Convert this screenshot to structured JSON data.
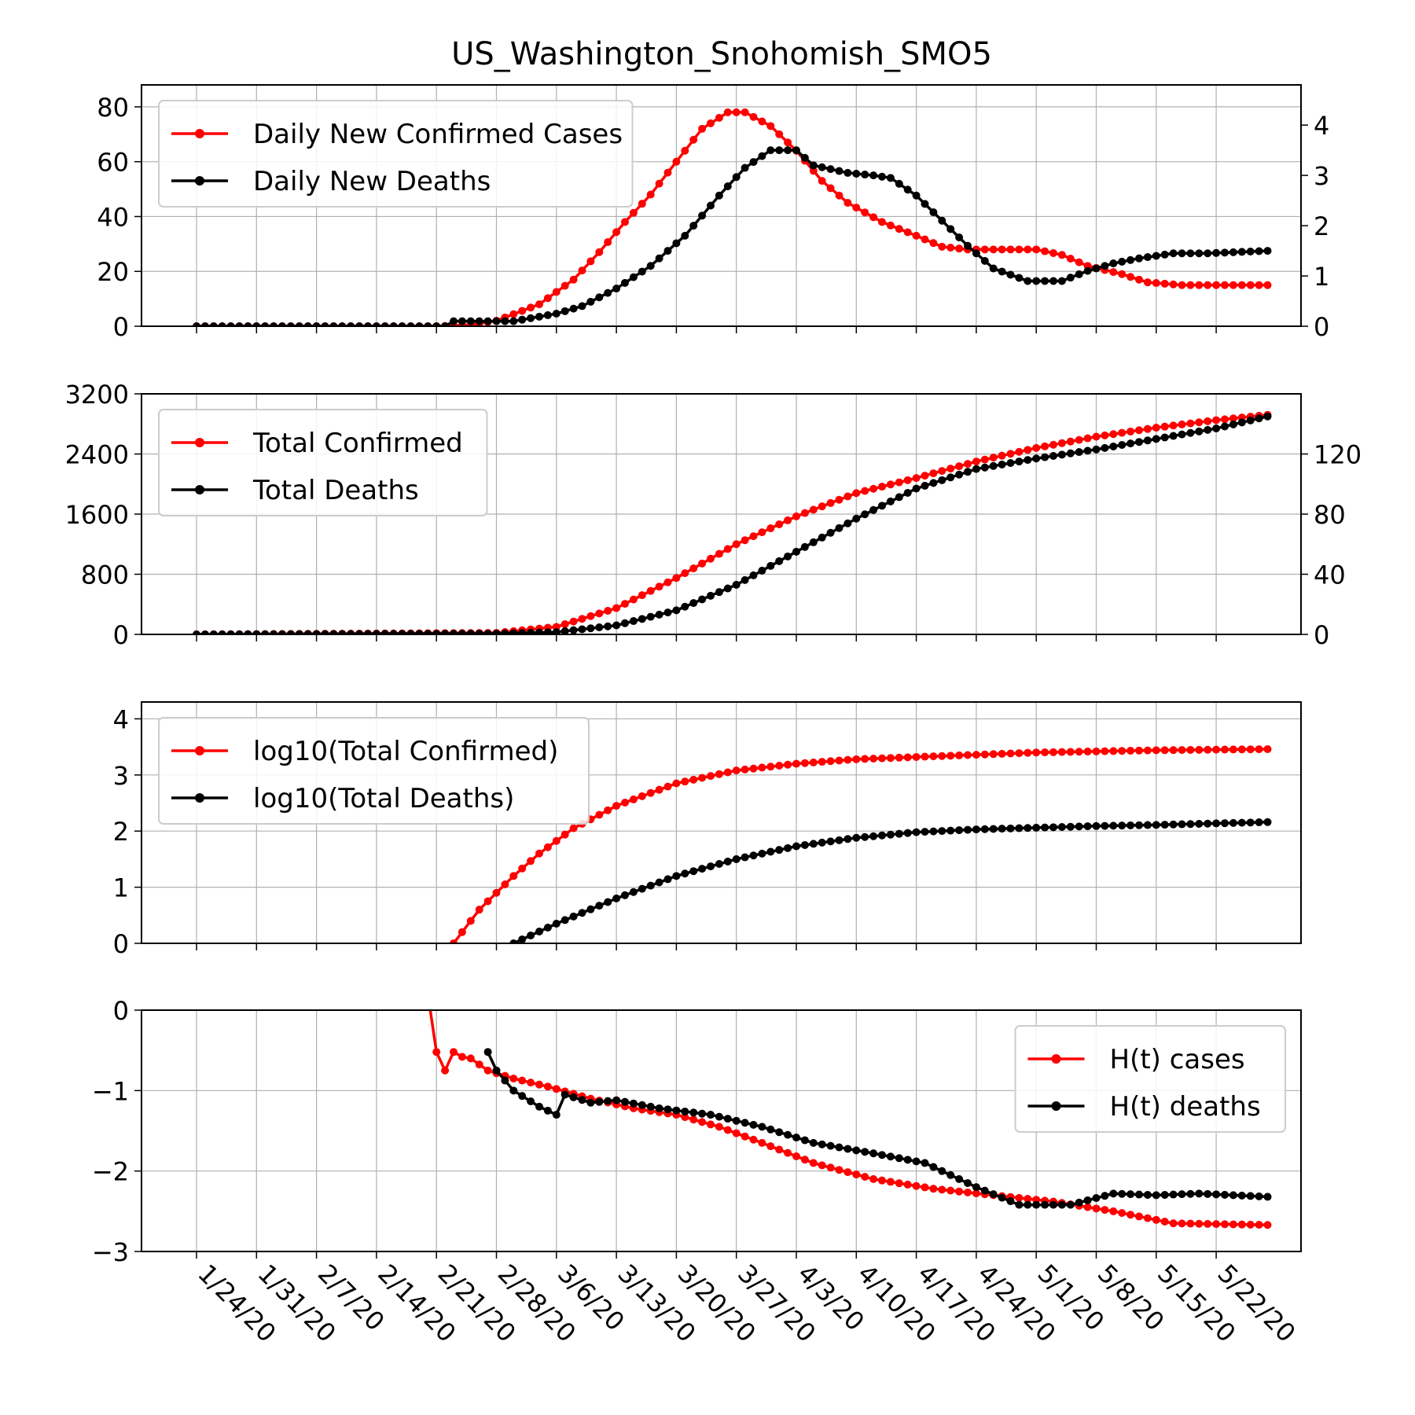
{
  "figure_title": "US_Washington_Snohomish_SMO5",
  "x_axis": {
    "ticks": [
      "1/24/20",
      "1/31/20",
      "2/7/20",
      "2/14/20",
      "2/21/20",
      "2/28/20",
      "3/6/20",
      "3/13/20",
      "3/20/20",
      "3/27/20",
      "4/3/20",
      "4/10/20",
      "4/17/20",
      "4/24/20",
      "5/1/20",
      "5/8/20",
      "5/15/20",
      "5/22/20"
    ],
    "first_date": "1/24/20",
    "last_date": "5/28/20"
  },
  "colors": {
    "cases": "#ff0000",
    "deaths": "#000000",
    "grid": "#b0b0b0"
  },
  "chart_data": [
    {
      "type": "line",
      "ylim_left": [
        0,
        88
      ],
      "yticks_left": [
        0,
        20,
        40,
        60,
        80
      ],
      "ylim_right": [
        0,
        4.8
      ],
      "yticks_right": [
        0,
        1,
        2,
        3,
        4
      ],
      "legend_position": "upper-left",
      "series": [
        {
          "name": "Daily New Confirmed Cases",
          "axis": "left",
          "color": "#ff0000",
          "points": [
            [
              "1/24/20",
              0
            ],
            [
              "2/21/20",
              0
            ],
            [
              "2/25/20",
              0.5
            ],
            [
              "2/28/20",
              2
            ],
            [
              "3/4/20",
              8
            ],
            [
              "3/8/20",
              17
            ],
            [
              "3/11/20",
              27
            ],
            [
              "3/14/20",
              38
            ],
            [
              "3/17/20",
              48
            ],
            [
              "3/20/20",
              60
            ],
            [
              "3/23/20",
              72
            ],
            [
              "3/26/20",
              78
            ],
            [
              "3/28/20",
              78
            ],
            [
              "3/31/20",
              73
            ],
            [
              "4/3/20",
              64
            ],
            [
              "4/6/20",
              53
            ],
            [
              "4/9/20",
              45
            ],
            [
              "4/13/20",
              38
            ],
            [
              "4/17/20",
              33
            ],
            [
              "4/20/20",
              29
            ],
            [
              "4/23/20",
              28
            ],
            [
              "4/28/20",
              28
            ],
            [
              "5/1/20",
              28
            ],
            [
              "5/4/20",
              26
            ],
            [
              "5/7/20",
              22
            ],
            [
              "5/11/20",
              19
            ],
            [
              "5/14/20",
              16
            ],
            [
              "5/18/20",
              15
            ],
            [
              "5/28/20",
              15
            ]
          ]
        },
        {
          "name": "Daily New Deaths",
          "axis": "left-of-right",
          "color": "#000000",
          "points": [
            [
              "1/24/20",
              0
            ],
            [
              "2/22/20",
              0
            ],
            [
              "2/23/20",
              0.1
            ],
            [
              "3/1/20",
              0.1
            ],
            [
              "3/6/20",
              0.25
            ],
            [
              "3/9/20",
              0.4
            ],
            [
              "3/13/20",
              0.75
            ],
            [
              "3/17/20",
              1.2
            ],
            [
              "3/21/20",
              1.8
            ],
            [
              "3/25/20",
              2.6
            ],
            [
              "3/28/20",
              3.15
            ],
            [
              "3/31/20",
              3.5
            ],
            [
              "4/3/20",
              3.5
            ],
            [
              "4/5/20",
              3.2
            ],
            [
              "4/9/20",
              3.05
            ],
            [
              "4/12/20",
              3.0
            ],
            [
              "4/14/20",
              2.95
            ],
            [
              "4/17/20",
              2.6
            ],
            [
              "4/20/20",
              2.1
            ],
            [
              "4/23/20",
              1.6
            ],
            [
              "4/26/20",
              1.15
            ],
            [
              "4/30/20",
              0.9
            ],
            [
              "5/4/20",
              0.9
            ],
            [
              "5/7/20",
              1.1
            ],
            [
              "5/10/20",
              1.25
            ],
            [
              "5/13/20",
              1.35
            ],
            [
              "5/17/20",
              1.45
            ],
            [
              "5/21/20",
              1.45
            ],
            [
              "5/28/20",
              1.5
            ]
          ]
        }
      ]
    },
    {
      "type": "line",
      "ylim_left": [
        0,
        3200
      ],
      "yticks_left": [
        0,
        800,
        1600,
        2400,
        3200
      ],
      "ylim_right": [
        0,
        160
      ],
      "yticks_right": [
        0,
        40,
        80,
        120
      ],
      "legend_position": "upper-left",
      "series": [
        {
          "name": "Total Confirmed",
          "axis": "left",
          "color": "#ff0000",
          "points": [
            [
              "1/24/20",
              0
            ],
            [
              "2/28/20",
              20
            ],
            [
              "3/6/20",
              100
            ],
            [
              "3/13/20",
              350
            ],
            [
              "3/20/20",
              750
            ],
            [
              "3/27/20",
              1200
            ],
            [
              "4/3/20",
              1570
            ],
            [
              "4/10/20",
              1880
            ],
            [
              "4/17/20",
              2080
            ],
            [
              "4/24/20",
              2300
            ],
            [
              "5/1/20",
              2480
            ],
            [
              "5/8/20",
              2630
            ],
            [
              "5/15/20",
              2750
            ],
            [
              "5/22/20",
              2850
            ],
            [
              "5/28/20",
              2920
            ]
          ]
        },
        {
          "name": "Total Deaths",
          "axis": "right",
          "color": "#000000",
          "points": [
            [
              "1/24/20",
              0
            ],
            [
              "2/28/20",
              0.5
            ],
            [
              "3/6/20",
              1.5
            ],
            [
              "3/13/20",
              6
            ],
            [
              "3/20/20",
              16
            ],
            [
              "3/27/20",
              33
            ],
            [
              "4/3/20",
              55
            ],
            [
              "4/10/20",
              77
            ],
            [
              "4/17/20",
              97
            ],
            [
              "4/24/20",
              110
            ],
            [
              "5/1/20",
              117
            ],
            [
              "5/8/20",
              123
            ],
            [
              "5/15/20",
              130
            ],
            [
              "5/22/20",
              137
            ],
            [
              "5/28/20",
              145
            ]
          ]
        }
      ]
    },
    {
      "type": "line",
      "ylim_left": [
        0,
        4.3
      ],
      "yticks_left": [
        0,
        1,
        2,
        3,
        4
      ],
      "legend_position": "upper-left",
      "series": [
        {
          "name": "log10(Total Confirmed)",
          "axis": "left",
          "color": "#ff0000",
          "points": [
            [
              "2/23/20",
              0
            ],
            [
              "2/26/20",
              0.6
            ],
            [
              "3/1/20",
              1.2
            ],
            [
              "3/4/20",
              1.6
            ],
            [
              "3/8/20",
              2.05
            ],
            [
              "3/13/20",
              2.45
            ],
            [
              "3/20/20",
              2.85
            ],
            [
              "3/27/20",
              3.08
            ],
            [
              "4/3/20",
              3.2
            ],
            [
              "4/10/20",
              3.28
            ],
            [
              "4/17/20",
              3.32
            ],
            [
              "4/24/20",
              3.36
            ],
            [
              "5/1/20",
              3.4
            ],
            [
              "5/8/20",
              3.42
            ],
            [
              "5/15/20",
              3.44
            ],
            [
              "5/28/20",
              3.46
            ]
          ]
        },
        {
          "name": "log10(Total Deaths)",
          "axis": "left",
          "color": "#000000",
          "points": [
            [
              "3/1/20",
              0
            ],
            [
              "3/6/20",
              0.35
            ],
            [
              "3/13/20",
              0.8
            ],
            [
              "3/20/20",
              1.2
            ],
            [
              "3/27/20",
              1.5
            ],
            [
              "4/3/20",
              1.73
            ],
            [
              "4/10/20",
              1.88
            ],
            [
              "4/17/20",
              1.98
            ],
            [
              "4/24/20",
              2.03
            ],
            [
              "5/1/20",
              2.06
            ],
            [
              "5/8/20",
              2.09
            ],
            [
              "5/15/20",
              2.11
            ],
            [
              "5/28/20",
              2.16
            ]
          ]
        }
      ]
    },
    {
      "type": "line",
      "ylim_left": [
        -3,
        0
      ],
      "yticks_left": [
        0,
        -1,
        -2,
        -3
      ],
      "legend_position": "upper-right",
      "series": [
        {
          "name": "H(t) cases",
          "axis": "left",
          "color": "#ff0000",
          "points": [
            [
              "2/20/20",
              0.2
            ],
            [
              "2/21/20",
              -0.52
            ],
            [
              "2/22/20",
              -0.75
            ],
            [
              "2/23/20",
              -0.52
            ],
            [
              "2/24/20",
              -0.58
            ],
            [
              "2/25/20",
              -0.6
            ],
            [
              "2/27/20",
              -0.75
            ],
            [
              "3/1/20",
              -0.85
            ],
            [
              "3/5/20",
              -0.95
            ],
            [
              "3/10/20",
              -1.1
            ],
            [
              "3/15/20",
              -1.22
            ],
            [
              "3/20/20",
              -1.3
            ],
            [
              "3/25/20",
              -1.45
            ],
            [
              "3/30/20",
              -1.65
            ],
            [
              "4/5/20",
              -1.9
            ],
            [
              "4/12/20",
              -2.1
            ],
            [
              "4/19/20",
              -2.22
            ],
            [
              "4/26/20",
              -2.3
            ],
            [
              "5/3/20",
              -2.38
            ],
            [
              "5/10/20",
              -2.5
            ],
            [
              "5/17/20",
              -2.65
            ],
            [
              "5/28/20",
              -2.67
            ]
          ]
        },
        {
          "name": "H(t) deaths",
          "axis": "left",
          "color": "#000000",
          "points": [
            [
              "2/27/20",
              -0.52
            ],
            [
              "2/28/20",
              -0.75
            ],
            [
              "3/1/20",
              -1.0
            ],
            [
              "3/4/20",
              -1.2
            ],
            [
              "3/6/20",
              -1.3
            ],
            [
              "3/7/20",
              -1.05
            ],
            [
              "3/10/20",
              -1.15
            ],
            [
              "3/13/20",
              -1.12
            ],
            [
              "3/18/20",
              -1.22
            ],
            [
              "3/24/20",
              -1.3
            ],
            [
              "3/30/20",
              -1.45
            ],
            [
              "4/5/20",
              -1.65
            ],
            [
              "4/12/20",
              -1.78
            ],
            [
              "4/18/20",
              -1.9
            ],
            [
              "4/24/20",
              -2.2
            ],
            [
              "4/29/20",
              -2.42
            ],
            [
              "5/5/20",
              -2.42
            ],
            [
              "5/10/20",
              -2.28
            ],
            [
              "5/15/20",
              -2.3
            ],
            [
              "5/20/20",
              -2.28
            ],
            [
              "5/28/20",
              -2.32
            ]
          ]
        }
      ]
    }
  ]
}
